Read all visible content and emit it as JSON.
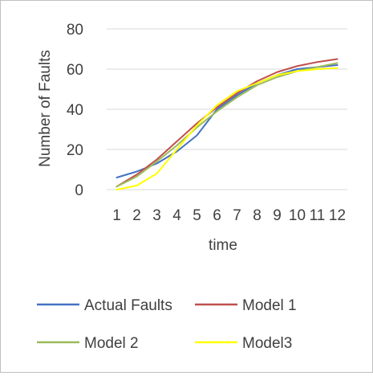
{
  "chart_data": {
    "type": "line",
    "title": "",
    "xlabel": "time",
    "ylabel": "Number of Faults",
    "x": [
      "1",
      "2",
      "3",
      "4",
      "5",
      "6",
      "7",
      "8",
      "9",
      "10",
      "11",
      "12"
    ],
    "ylim": [
      0,
      80
    ],
    "yticks": [
      "0",
      "20",
      "40",
      "60",
      "80"
    ],
    "grid": "horizontal",
    "legend": "bottom",
    "series": [
      {
        "name": "Actual Faults",
        "color": "#4472C4",
        "values": [
          6,
          9,
          13,
          19,
          27,
          40,
          47,
          53,
          57,
          60,
          61,
          62
        ]
      },
      {
        "name": "Model 1",
        "color": "#C0504D",
        "values": [
          1.5,
          7.5,
          15,
          24,
          33,
          41,
          48,
          54,
          58.5,
          61.5,
          63.5,
          65
        ]
      },
      {
        "name": "Model 2",
        "color": "#9BBB59",
        "values": [
          1.5,
          6.5,
          14,
          22,
          31,
          39,
          46,
          52,
          56,
          59,
          61,
          63
        ]
      },
      {
        "name": "Model3",
        "color": "#FFFF00",
        "values": [
          0,
          2,
          8,
          20,
          32,
          42,
          49,
          53,
          57,
          59,
          60,
          60.5
        ]
      }
    ]
  }
}
